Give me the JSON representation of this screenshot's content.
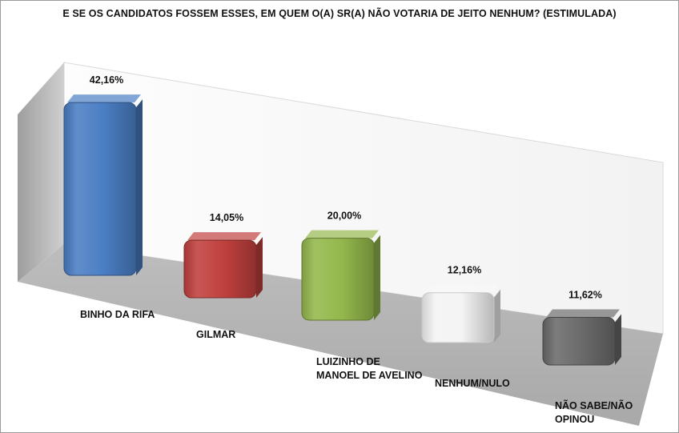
{
  "chart_data": {
    "type": "bar",
    "title": "E SE OS CANDIDATOS FOSSEM ESSES, EM QUEM O(A) SR(A) NÃO VOTARIA DE JEITO NENHUM? (ESTIMULADA)",
    "categories": [
      "BINHO DA RIFA",
      "GILMAR",
      "LUIZINHO DE MANOEL DE AVELINO",
      "NENHUM/NULO",
      "NÃO SABE/NÃO OPINOU"
    ],
    "category_lines": [
      [
        "BINHO DA RIFA"
      ],
      [
        "GILMAR"
      ],
      [
        "LUIZINHO DE",
        "MANOEL DE AVELINO"
      ],
      [
        "NENHUM/NULO"
      ],
      [
        "NÃO SABE/NÃO",
        "OPINOU"
      ]
    ],
    "values": [
      42.16,
      14.05,
      20.0,
      12.16,
      11.62
    ],
    "value_labels": [
      "42,16%",
      "14,05%",
      "20,00%",
      "12,16%",
      "11,62%"
    ],
    "colors": [
      "#4a7ec4",
      "#c0403d",
      "#94b84c",
      "#f4f4f4",
      "#6a6a6a"
    ],
    "unit": "%",
    "grid": false,
    "legend": "none",
    "style": "3d-perspective"
  }
}
